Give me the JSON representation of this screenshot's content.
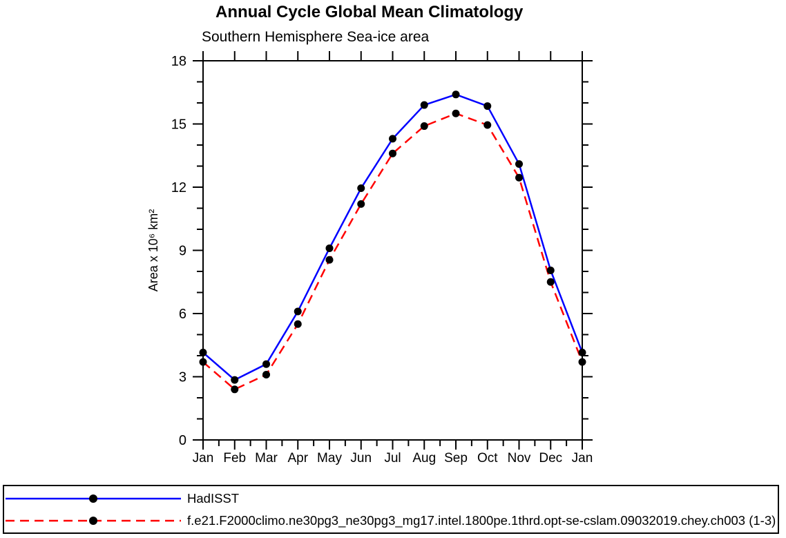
{
  "page": {
    "background": "#ffffff"
  },
  "chart_data": {
    "type": "line",
    "title": "Annual Cycle Global Mean Climatology",
    "subtitle": "Southern Hemisphere Sea-ice area",
    "xlabel": "",
    "ylabel": "Area x 10⁶ km²",
    "categories": [
      "Jan",
      "Feb",
      "Mar",
      "Apr",
      "May",
      "Jun",
      "Jul",
      "Aug",
      "Sep",
      "Oct",
      "Nov",
      "Dec",
      "Jan"
    ],
    "ylim": [
      0,
      18
    ],
    "ytick_major": [
      0,
      3,
      6,
      9,
      12,
      15,
      18
    ],
    "ytick_minor_step": 1,
    "grid": false,
    "legend_position": "bottom-box",
    "axis_color": "#000000",
    "marker": {
      "shape": "circle",
      "color": "#000000",
      "radius": 5.5
    },
    "series": [
      {
        "name": "HadISST",
        "color": "#0000ff",
        "style": "solid",
        "values": [
          4.15,
          2.85,
          3.6,
          6.1,
          9.1,
          11.95,
          14.3,
          15.9,
          16.4,
          15.85,
          13.1,
          8.05,
          4.15
        ]
      },
      {
        "name": "f.e21.F2000climo.ne30pg3_ne30pg3_mg17.intel.1800pe.1thrd.opt-se-cslam.09032019.chey.ch003 (1-3)",
        "color": "#ff0000",
        "style": "dashed",
        "values": [
          3.7,
          2.4,
          3.1,
          5.5,
          8.55,
          11.2,
          13.6,
          14.9,
          15.5,
          14.95,
          12.45,
          7.5,
          3.7
        ]
      }
    ]
  }
}
